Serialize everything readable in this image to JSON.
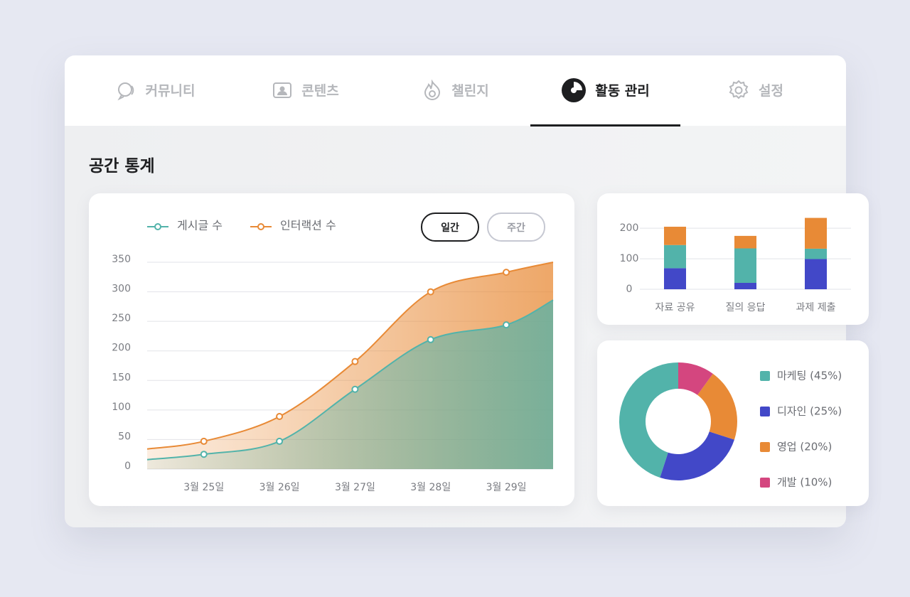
{
  "tabs": [
    "커뮤니티",
    "콘텐츠",
    "챌린지",
    "활동 관리",
    "설정"
  ],
  "active_tab": 3,
  "section_title": "공간 통계",
  "toggle": {
    "options": [
      "일간",
      "주간"
    ],
    "active": 0
  },
  "chart_data": [
    {
      "type": "area",
      "x": [
        0.25,
        1,
        2,
        3,
        4,
        5,
        5.62
      ],
      "xlim": [
        0.25,
        5.62
      ],
      "xticks": [
        {
          "value": 1,
          "label": "3월 25일"
        },
        {
          "value": 2,
          "label": "3월 26일"
        },
        {
          "value": 3,
          "label": "3월 27일"
        },
        {
          "value": 4,
          "label": "3월 28일"
        },
        {
          "value": 5,
          "label": "3월 29일"
        }
      ],
      "ylim": [
        0,
        350
      ],
      "yticks": [
        0,
        50,
        100,
        150,
        200,
        250,
        300,
        350
      ],
      "grid": true,
      "series": [
        {
          "name": "게시글 수",
          "color": "#52b3aa",
          "values": [
            16,
            25,
            47,
            135,
            219,
            244,
            286
          ]
        },
        {
          "name": "인터랙션 수",
          "color": "#e88a36",
          "values": [
            34,
            47,
            89,
            182,
            300,
            333,
            350
          ]
        }
      ]
    },
    {
      "type": "bar",
      "stacked": true,
      "categories": [
        "자료 공유",
        "질의 응답",
        "과제 제출"
      ],
      "ylim": [
        0,
        240
      ],
      "yticks": [
        0,
        100,
        200
      ],
      "grid": true,
      "series": [
        {
          "color": "#4248c8",
          "values": [
            69,
            21,
            99
          ]
        },
        {
          "color": "#52b3aa",
          "values": [
            76,
            113,
            34
          ]
        },
        {
          "color": "#e88a36",
          "values": [
            60,
            41,
            101
          ]
        }
      ]
    },
    {
      "type": "donut",
      "values": [
        45,
        25,
        20,
        10
      ],
      "value_labels": [
        "마케팅 (45%)",
        "디자인 (25%)",
        "영업 (20%)",
        "개발 (10%)"
      ],
      "colors": [
        "#52b3aa",
        "#4248c8",
        "#e88a36",
        "#d4467f"
      ]
    }
  ]
}
